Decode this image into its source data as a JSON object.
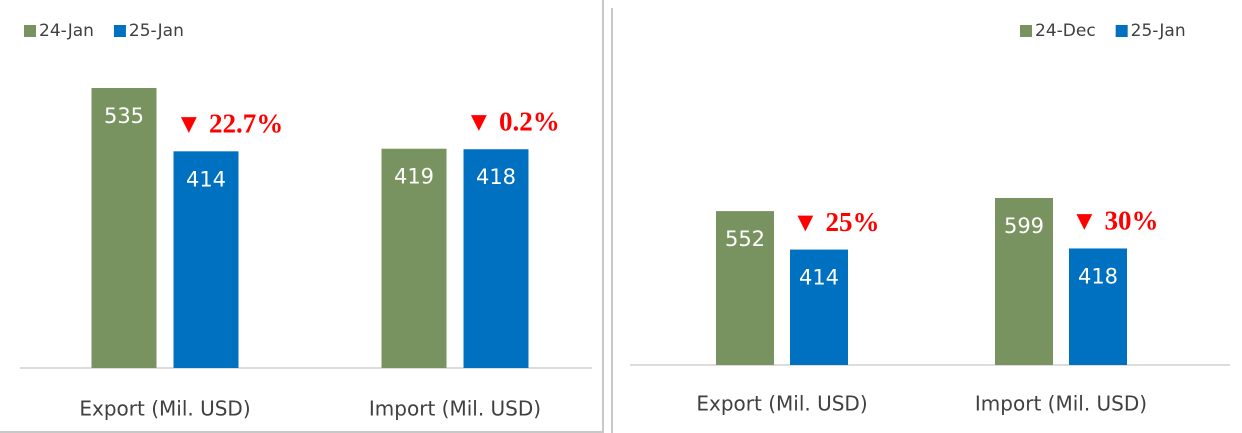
{
  "chart_data": [
    {
      "type": "bar",
      "categories": [
        "Export (Mil. USD)",
        "Import (Mil. USD)"
      ],
      "series": [
        {
          "name": "24-Jan",
          "color": "#78935f",
          "values": [
            535,
            419
          ]
        },
        {
          "name": "25-Jan",
          "color": "#0070c0",
          "values": [
            414,
            418
          ]
        }
      ],
      "annotations": [
        "▼ 22.7%",
        "▼ 0.2%"
      ],
      "legend": "top-left"
    },
    {
      "type": "bar",
      "categories": [
        "Export (Mil. USD)",
        "Import (Mil. USD)"
      ],
      "series": [
        {
          "name": "24-Dec",
          "color": "#78935f",
          "values": [
            552,
            599
          ]
        },
        {
          "name": "25-Jan",
          "color": "#0070c0",
          "values": [
            414,
            418
          ]
        }
      ],
      "annotations": [
        "▼ 25%",
        "▼ 30%"
      ],
      "legend": "top-right"
    }
  ]
}
